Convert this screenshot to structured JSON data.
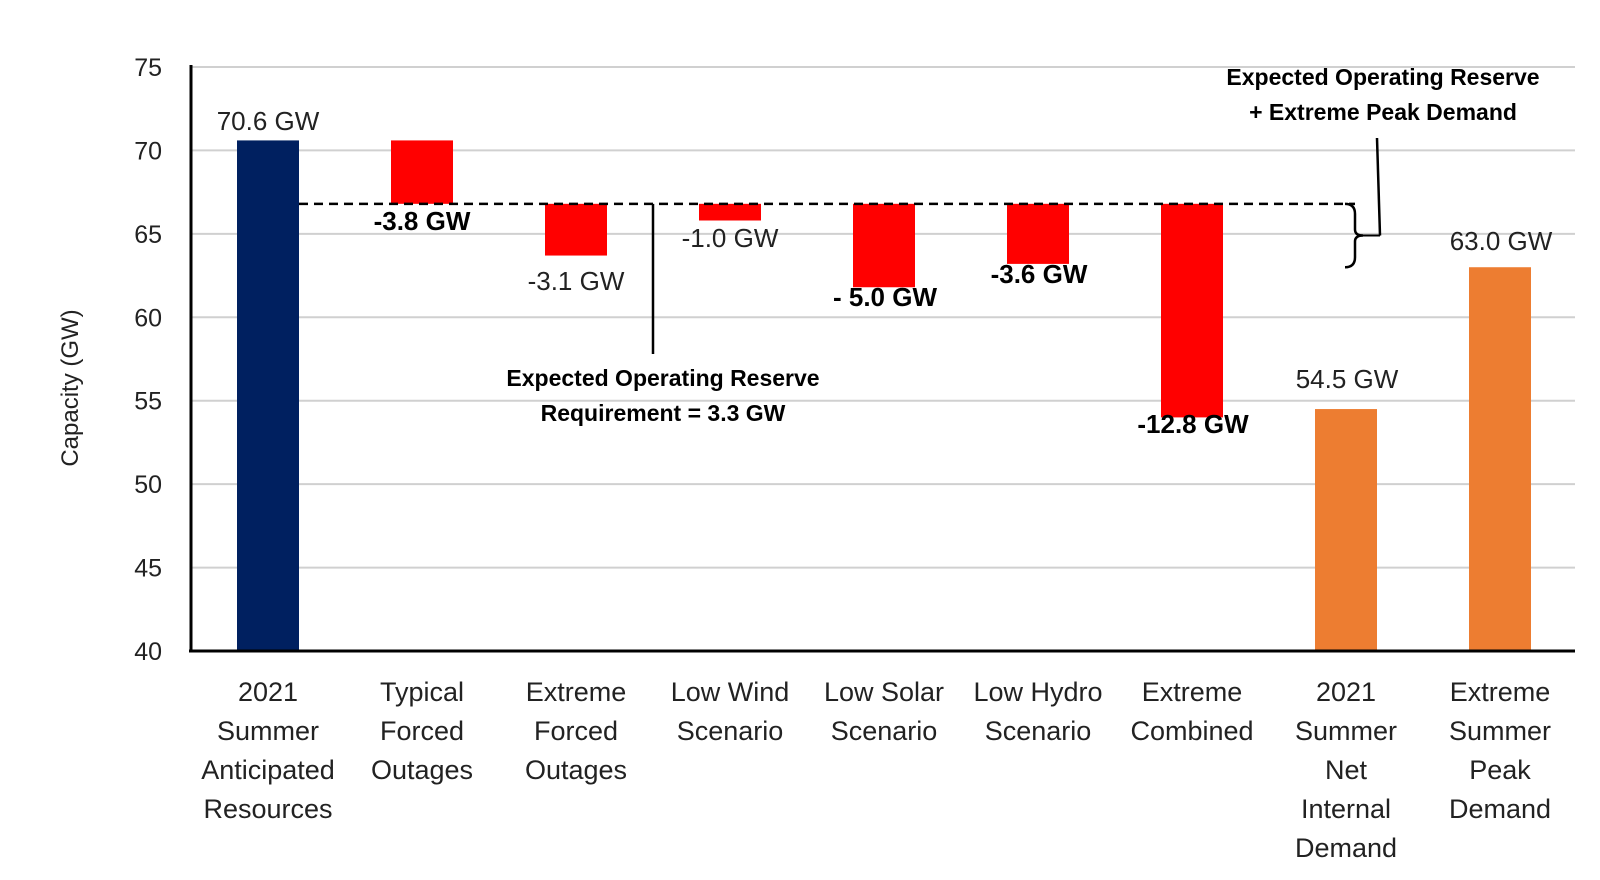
{
  "chart_data": {
    "type": "bar",
    "subtype": "waterfall",
    "ylabel": "Capacity (GW)",
    "ylim": [
      40,
      75
    ],
    "yticks": [
      40,
      45,
      50,
      55,
      60,
      65,
      70,
      75
    ],
    "grid": true,
    "legend": "none",
    "categories": [
      [
        "2021",
        "Summer",
        "Anticipated",
        "Resources"
      ],
      [
        "Typical",
        "Forced",
        "Outages"
      ],
      [
        "Extreme",
        "Forced",
        "Outages"
      ],
      [
        "Low Wind",
        "Scenario"
      ],
      [
        "Low Solar",
        "Scenario"
      ],
      [
        "Low Hydro",
        "Scenario"
      ],
      [
        "Extreme",
        "Combined"
      ],
      [
        "2021",
        "Summer",
        "Net",
        "Internal",
        "Demand"
      ],
      [
        "Extreme",
        "Summer",
        "Peak",
        "Demand"
      ]
    ],
    "bars": [
      {
        "start": 40,
        "end": 70.6,
        "color": "#002060",
        "label": "70.6 GW",
        "label_bold": false
      },
      {
        "start": 70.6,
        "end": 66.8,
        "color": "#ff0000",
        "label": "-3.8 GW",
        "label_bold": true
      },
      {
        "start": 66.8,
        "end": 63.7,
        "color": "#ff0000",
        "label": "-3.1 GW",
        "label_bold": false
      },
      {
        "start": 66.8,
        "end": 65.8,
        "color": "#ff0000",
        "label": "-1.0 GW",
        "label_bold": false
      },
      {
        "start": 66.8,
        "end": 61.8,
        "color": "#ff0000",
        "label": "- 5.0 GW",
        "label_bold": true
      },
      {
        "start": 66.8,
        "end": 63.2,
        "color": "#ff0000",
        "label": "-3.6 GW",
        "label_bold": true
      },
      {
        "start": 66.8,
        "end": 54.0,
        "color": "#ff0000",
        "label": "-12.8 GW",
        "label_bold": true
      },
      {
        "start": 40,
        "end": 54.5,
        "color": "#ed7d31",
        "label": "54.5 GW",
        "label_bold": false
      },
      {
        "start": 40,
        "end": 63.0,
        "color": "#ed7d31",
        "label": "63.0 GW",
        "label_bold": false
      }
    ],
    "reference_line": {
      "value": 66.8,
      "style": "dashed"
    },
    "annotations": {
      "reserve_requirement": [
        "Expected Operating Reserve",
        "Requirement = 3.3 GW"
      ],
      "reserve_plus_peak": [
        "Expected Operating Reserve",
        "+ Extreme Peak Demand"
      ]
    }
  }
}
